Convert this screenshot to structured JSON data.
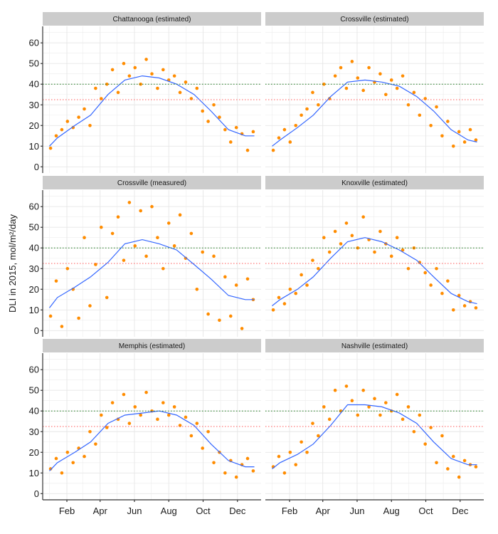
{
  "chart_data": {
    "type": "scatter",
    "ylabel": "DLI in 2015, mol/m²/day",
    "ylim": [
      -3,
      68
    ],
    "xlim": [
      "2015-01-01",
      "2015-12-31"
    ],
    "yticks": [
      0,
      10,
      20,
      30,
      40,
      50,
      60
    ],
    "xticks": [
      {
        "date": "2015-02-01",
        "label": "Feb"
      },
      {
        "date": "2015-04-01",
        "label": "Apr"
      },
      {
        "date": "2015-06-01",
        "label": "Jun"
      },
      {
        "date": "2015-08-01",
        "label": "Aug"
      },
      {
        "date": "2015-10-01",
        "label": "Oct"
      },
      {
        "date": "2015-12-01",
        "label": "Dec"
      }
    ],
    "grid": true,
    "point_color": "#ff8c00",
    "smooth_color": "#3366ff",
    "reference_lines": [
      {
        "y": 40,
        "color": "#1a7a1a"
      },
      {
        "y": 32.5,
        "color": "#ff5a5a"
      }
    ],
    "x": [
      "2015-01-03",
      "2015-01-13",
      "2015-01-23",
      "2015-02-02",
      "2015-02-12",
      "2015-02-22",
      "2015-03-04",
      "2015-03-14",
      "2015-03-24",
      "2015-04-03",
      "2015-04-13",
      "2015-04-23",
      "2015-05-03",
      "2015-05-13",
      "2015-05-23",
      "2015-06-02",
      "2015-06-12",
      "2015-06-22",
      "2015-07-02",
      "2015-07-12",
      "2015-07-22",
      "2015-08-01",
      "2015-08-11",
      "2015-08-21",
      "2015-08-31",
      "2015-09-10",
      "2015-09-20",
      "2015-09-30",
      "2015-10-10",
      "2015-10-20",
      "2015-10-30",
      "2015-11-09",
      "2015-11-19",
      "2015-11-29",
      "2015-12-09",
      "2015-12-19",
      "2015-12-29"
    ],
    "smooth_x": [
      "2015-01-01",
      "2015-01-15",
      "2015-02-15",
      "2015-03-15",
      "2015-04-15",
      "2015-05-15",
      "2015-06-15",
      "2015-07-15",
      "2015-08-15",
      "2015-09-15",
      "2015-10-15",
      "2015-11-15",
      "2015-12-15",
      "2015-12-31"
    ],
    "panels": [
      {
        "title": "Chattanooga (estimated)",
        "y": [
          9,
          15,
          18,
          22,
          19,
          24,
          28,
          20,
          38,
          33,
          40,
          47,
          36,
          50,
          44,
          48,
          40,
          52,
          45,
          38,
          47,
          42,
          44,
          36,
          41,
          33,
          38,
          27,
          22,
          30,
          24,
          18,
          12,
          19,
          16,
          8,
          17
        ],
        "smooth": [
          10,
          14,
          20,
          25,
          35,
          42,
          44,
          43,
          40,
          35,
          27,
          18,
          15,
          15
        ]
      },
      {
        "title": "Crossville (estimated)",
        "y": [
          8,
          14,
          18,
          12,
          20,
          25,
          28,
          36,
          30,
          40,
          33,
          44,
          48,
          38,
          51,
          43,
          37,
          48,
          41,
          45,
          35,
          42,
          38,
          44,
          30,
          36,
          25,
          33,
          20,
          29,
          15,
          22,
          10,
          17,
          12,
          18,
          13
        ],
        "smooth": [
          10,
          13,
          19,
          25,
          34,
          41,
          42,
          41,
          39,
          34,
          27,
          18,
          13,
          12
        ]
      },
      {
        "title": "Crossville (measured)",
        "y": [
          7,
          24,
          2,
          30,
          20,
          6,
          45,
          12,
          32,
          50,
          16,
          47,
          55,
          34,
          62,
          41,
          58,
          36,
          60,
          45,
          30,
          52,
          41,
          56,
          35,
          47,
          20,
          38,
          8,
          36,
          5,
          26,
          7,
          22,
          1,
          25,
          15
        ],
        "smooth": [
          11,
          16,
          21,
          26,
          33,
          42,
          44,
          42,
          39,
          32,
          25,
          17,
          15,
          15
        ]
      },
      {
        "title": "Knoxville (estimated)",
        "y": [
          10,
          16,
          13,
          20,
          18,
          27,
          22,
          34,
          30,
          45,
          38,
          48,
          42,
          52,
          46,
          40,
          55,
          44,
          38,
          48,
          42,
          36,
          45,
          39,
          30,
          40,
          33,
          28,
          22,
          30,
          18,
          24,
          10,
          17,
          12,
          14,
          11
        ],
        "smooth": [
          12,
          15,
          20,
          26,
          35,
          43,
          45,
          43,
          39,
          34,
          26,
          18,
          14,
          13
        ]
      },
      {
        "title": "Memphis (estimated)",
        "y": [
          12,
          17,
          10,
          20,
          15,
          22,
          18,
          30,
          24,
          38,
          32,
          44,
          36,
          48,
          34,
          42,
          38,
          49,
          40,
          36,
          44,
          38,
          42,
          33,
          37,
          28,
          34,
          22,
          30,
          15,
          20,
          10,
          16,
          8,
          14,
          17,
          11
        ],
        "smooth": [
          11,
          15,
          20,
          25,
          34,
          38,
          39,
          40,
          38,
          33,
          24,
          16,
          13,
          13
        ]
      },
      {
        "title": "Nashville (estimated)",
        "y": [
          13,
          18,
          10,
          20,
          14,
          25,
          20,
          34,
          28,
          42,
          36,
          50,
          40,
          52,
          45,
          38,
          50,
          42,
          46,
          38,
          44,
          40,
          48,
          36,
          42,
          30,
          38,
          24,
          32,
          15,
          28,
          12,
          18,
          8,
          16,
          14,
          13
        ],
        "smooth": [
          12,
          15,
          19,
          24,
          33,
          43,
          43,
          42,
          39,
          34,
          25,
          17,
          14,
          14
        ]
      }
    ]
  }
}
